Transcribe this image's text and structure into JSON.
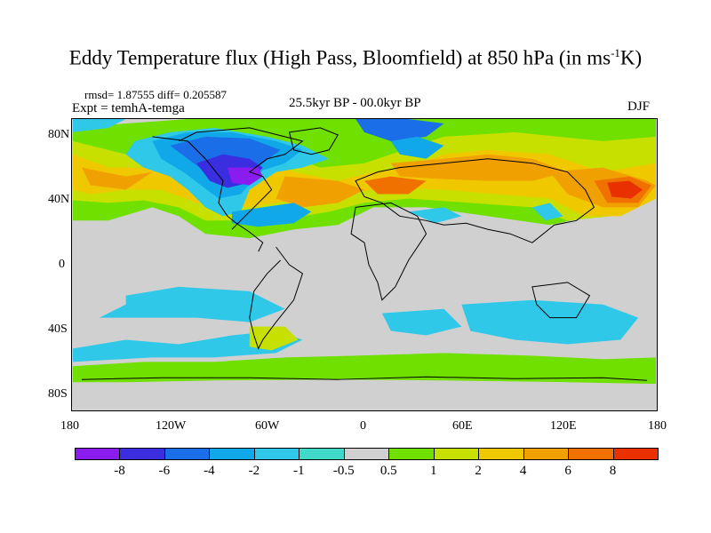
{
  "title": {
    "main": "Eddy Temperature flux (High Pass, Bloomfield) at 850 hPa (in ms",
    "sup": "-1",
    "end": "K)"
  },
  "stats": "rmsd= 1.87555 diff= 0.205587",
  "experiment": "Expt = temhA-temga",
  "period": "25.5kyr BP - 00.0kyr BP",
  "season": "DJF",
  "lat_labels": [
    "80N",
    "40N",
    "0",
    "40S",
    "80S"
  ],
  "lon_labels": [
    "180",
    "120W",
    "60W",
    "0",
    "60E",
    "120E",
    "180"
  ],
  "colorbar": {
    "colors": [
      "#8a1cf0",
      "#3a2ee0",
      "#1a6ee8",
      "#10a8e8",
      "#30c8e8",
      "#40d8c8",
      "#d0d0d0",
      "#70e000",
      "#c8e000",
      "#f0c800",
      "#f0a000",
      "#f07000",
      "#e83000"
    ],
    "labels": [
      "-8",
      "-6",
      "-4",
      "-2",
      "-1",
      "-0.5",
      "0.5",
      "1",
      "2",
      "4",
      "6",
      "8"
    ]
  }
}
